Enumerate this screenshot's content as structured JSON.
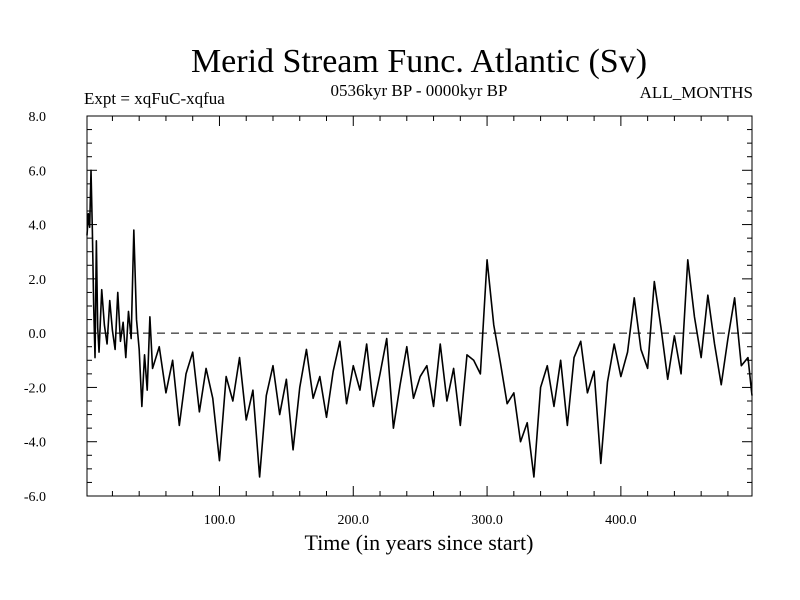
{
  "chart_data": {
    "type": "line",
    "title": "Merid Stream Func. Atlantic (Sv)",
    "subtitle_left": "Expt = xqFuC-xqfua",
    "subtitle_center": "0536kyr BP - 0000kyr BP",
    "subtitle_right": "ALL_MONTHS",
    "xlabel": "Time (in years since start)",
    "ylabel": "",
    "xlim": [
      1,
      498
    ],
    "ylim": [
      -6.0,
      8.0
    ],
    "x_ticks": [
      100,
      200,
      300,
      400
    ],
    "x_tick_labels": [
      "100.0",
      "200.0",
      "300.0",
      "400.0"
    ],
    "y_ticks": [
      -6,
      -4,
      -2,
      0,
      2,
      4,
      6,
      8
    ],
    "y_tick_labels": [
      "-6.0",
      "-4.0",
      "-2.0",
      "0.0",
      "2.0",
      "4.0",
      "6.0",
      "8.0"
    ],
    "reference_line": {
      "y": 0.0,
      "style": "dashed"
    },
    "series": [
      {
        "name": "Merid Stream Func. Atlantic",
        "color": "#000000",
        "x": [
          1,
          2,
          3,
          4,
          5,
          6,
          7,
          8,
          9,
          10,
          12,
          14,
          16,
          18,
          20,
          22,
          24,
          26,
          28,
          30,
          32,
          34,
          36,
          38,
          40,
          42,
          44,
          46,
          48,
          50,
          55,
          60,
          65,
          70,
          75,
          80,
          85,
          90,
          95,
          100,
          105,
          110,
          115,
          120,
          125,
          130,
          135,
          140,
          145,
          150,
          155,
          160,
          165,
          170,
          175,
          180,
          185,
          190,
          195,
          200,
          205,
          210,
          215,
          220,
          225,
          230,
          235,
          240,
          245,
          250,
          255,
          260,
          265,
          270,
          275,
          280,
          285,
          290,
          295,
          300,
          305,
          310,
          315,
          320,
          325,
          330,
          335,
          340,
          345,
          350,
          355,
          360,
          365,
          370,
          375,
          380,
          385,
          390,
          395,
          400,
          405,
          410,
          415,
          420,
          425,
          430,
          435,
          440,
          445,
          450,
          455,
          460,
          465,
          470,
          475,
          480,
          485,
          490,
          495,
          498
        ],
        "values": [
          3.6,
          4.4,
          3.9,
          6.0,
          3.8,
          1.0,
          -0.9,
          3.4,
          0.2,
          -0.7,
          1.6,
          0.3,
          -0.4,
          1.2,
          0.1,
          -0.6,
          1.5,
          -0.3,
          0.4,
          -0.9,
          0.8,
          -0.2,
          3.8,
          0.5,
          -0.6,
          -2.7,
          -0.8,
          -2.1,
          0.6,
          -1.3,
          -0.5,
          -2.2,
          -1.0,
          -3.4,
          -1.5,
          -0.7,
          -2.9,
          -1.3,
          -2.4,
          -4.7,
          -1.6,
          -2.5,
          -0.9,
          -3.2,
          -2.1,
          -5.3,
          -2.3,
          -1.2,
          -3.0,
          -1.7,
          -4.3,
          -2.0,
          -0.6,
          -2.4,
          -1.6,
          -3.1,
          -1.4,
          -0.3,
          -2.6,
          -1.2,
          -2.1,
          -0.4,
          -2.7,
          -1.5,
          -0.2,
          -3.5,
          -1.9,
          -0.5,
          -2.4,
          -1.6,
          -1.2,
          -2.7,
          -0.4,
          -2.5,
          -1.3,
          -3.4,
          -0.8,
          -1.0,
          -1.5,
          2.7,
          0.3,
          -1.1,
          -2.6,
          -2.2,
          -4.0,
          -3.3,
          -5.3,
          -2.0,
          -1.2,
          -2.7,
          -1.0,
          -3.4,
          -0.9,
          -0.3,
          -2.2,
          -1.4,
          -4.8,
          -1.8,
          -0.4,
          -1.6,
          -0.7,
          1.3,
          -0.6,
          -1.3,
          1.9,
          0.2,
          -1.7,
          -0.1,
          -1.5,
          2.7,
          0.6,
          -0.9,
          1.4,
          -0.4,
          -1.9,
          -0.2,
          1.3,
          -1.2,
          -0.9,
          -2.3
        ]
      }
    ]
  }
}
